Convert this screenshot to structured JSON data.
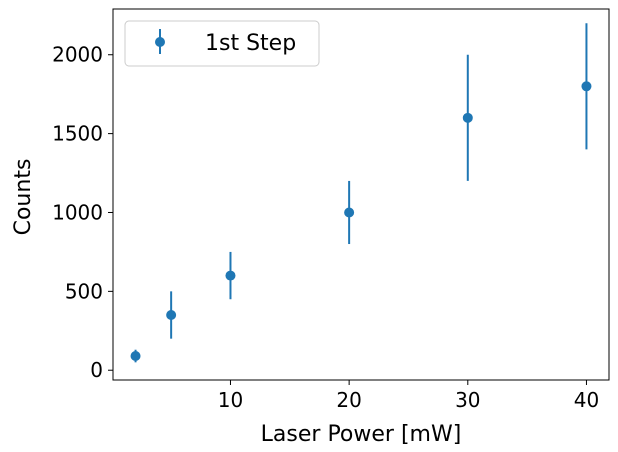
{
  "chart_data": {
    "type": "scatter",
    "xlabel": "Laser Power [mW]",
    "ylabel": "Counts",
    "xlim": [
      0.1,
      41.9
    ],
    "ylim": [
      -62,
      2290
    ],
    "xticks": [
      10,
      20,
      30,
      40
    ],
    "xtick_labels": [
      "10",
      "20",
      "30",
      "40"
    ],
    "yticks": [
      0,
      500,
      1000,
      1500,
      2000
    ],
    "ytick_labels": [
      "0",
      "500",
      "1000",
      "1500",
      "2000"
    ],
    "grid": false,
    "legend": {
      "position": "top-left",
      "entries": [
        "1st Step"
      ]
    },
    "series": [
      {
        "name": "1st Step",
        "color": "#1f77b4",
        "marker": "circle",
        "x": [
          2,
          5,
          10,
          20,
          30,
          40
        ],
        "y": [
          90,
          350,
          600,
          1000,
          1600,
          1800
        ],
        "yerr": [
          40,
          150,
          150,
          200,
          400,
          400
        ]
      }
    ]
  }
}
